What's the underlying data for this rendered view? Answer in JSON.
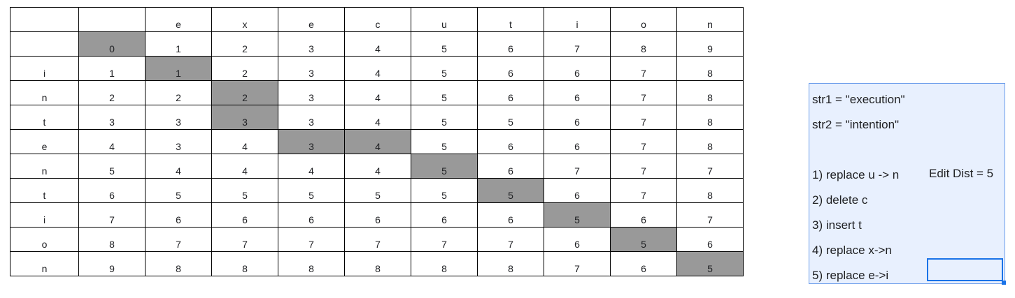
{
  "header": [
    "",
    "",
    "e",
    "x",
    "e",
    "c",
    "u",
    "t",
    "i",
    "o",
    "n"
  ],
  "rows": [
    [
      "",
      "0",
      "1",
      "2",
      "3",
      "4",
      "5",
      "6",
      "7",
      "8",
      "9"
    ],
    [
      "i",
      "1",
      "1",
      "2",
      "3",
      "4",
      "5",
      "6",
      "6",
      "7",
      "8"
    ],
    [
      "n",
      "2",
      "2",
      "2",
      "3",
      "4",
      "5",
      "6",
      "6",
      "7",
      "8"
    ],
    [
      "t",
      "3",
      "3",
      "3",
      "3",
      "4",
      "5",
      "5",
      "6",
      "7",
      "8"
    ],
    [
      "e",
      "4",
      "3",
      "4",
      "3",
      "4",
      "5",
      "6",
      "6",
      "7",
      "8"
    ],
    [
      "n",
      "5",
      "4",
      "4",
      "4",
      "4",
      "5",
      "6",
      "7",
      "7",
      "7"
    ],
    [
      "t",
      "6",
      "5",
      "5",
      "5",
      "5",
      "5",
      "5",
      "6",
      "7",
      "8"
    ],
    [
      "i",
      "7",
      "6",
      "6",
      "6",
      "6",
      "6",
      "6",
      "5",
      "6",
      "7"
    ],
    [
      "o",
      "8",
      "7",
      "7",
      "7",
      "7",
      "7",
      "7",
      "6",
      "5",
      "6"
    ],
    [
      "n",
      "9",
      "8",
      "8",
      "8",
      "8",
      "8",
      "8",
      "7",
      "6",
      "5"
    ]
  ],
  "highlight_color": "#999999",
  "highlighted_cells": [
    [
      0,
      1
    ],
    [
      1,
      2
    ],
    [
      2,
      3
    ],
    [
      3,
      3
    ],
    [
      4,
      4
    ],
    [
      4,
      5
    ],
    [
      5,
      6
    ],
    [
      6,
      7
    ],
    [
      7,
      8
    ],
    [
      8,
      9
    ],
    [
      9,
      10
    ]
  ],
  "panel": {
    "lines": [
      "str1 = \"execution\"",
      "str2 = \"intention\"",
      "",
      "1) replace u -> n",
      "2) delete c",
      "3) insert t",
      "4) replace x->n",
      "5) replace e->i"
    ],
    "edit_dist": "Edit Dist = 5"
  }
}
